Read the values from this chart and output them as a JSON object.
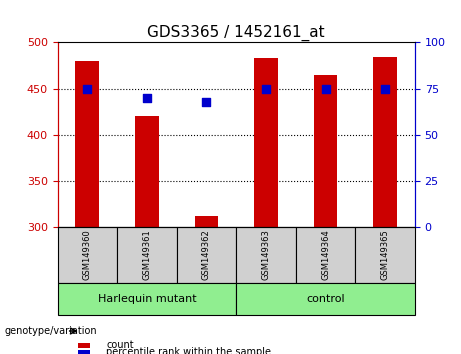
{
  "title": "GDS3365 / 1452161_at",
  "samples": [
    "GSM149360",
    "GSM149361",
    "GSM149362",
    "GSM149363",
    "GSM149364",
    "GSM149365"
  ],
  "count_values": [
    480,
    420,
    312,
    483,
    465,
    484
  ],
  "percentile_values": [
    75,
    70,
    68,
    75,
    75,
    75
  ],
  "ymin": 300,
  "ymax": 500,
  "yticks": [
    300,
    350,
    400,
    450,
    500
  ],
  "right_yticks": [
    0,
    25,
    50,
    75,
    100
  ],
  "groups": [
    {
      "label": "Harlequin mutant",
      "indices": [
        0,
        1,
        2
      ],
      "color": "#90EE90"
    },
    {
      "label": "control",
      "indices": [
        3,
        4,
        5
      ],
      "color": "#90EE90"
    }
  ],
  "group_label": "genotype/variation",
  "bar_color": "#cc0000",
  "dot_color": "#0000cc",
  "bar_width": 0.4,
  "legend_count_label": "count",
  "legend_percentile_label": "percentile rank within the sample",
  "title_fontsize": 11,
  "axis_label_color_left": "#cc0000",
  "axis_label_color_right": "#0000cc",
  "grid_color": "#000000",
  "sample_box_color": "#d0d0d0"
}
